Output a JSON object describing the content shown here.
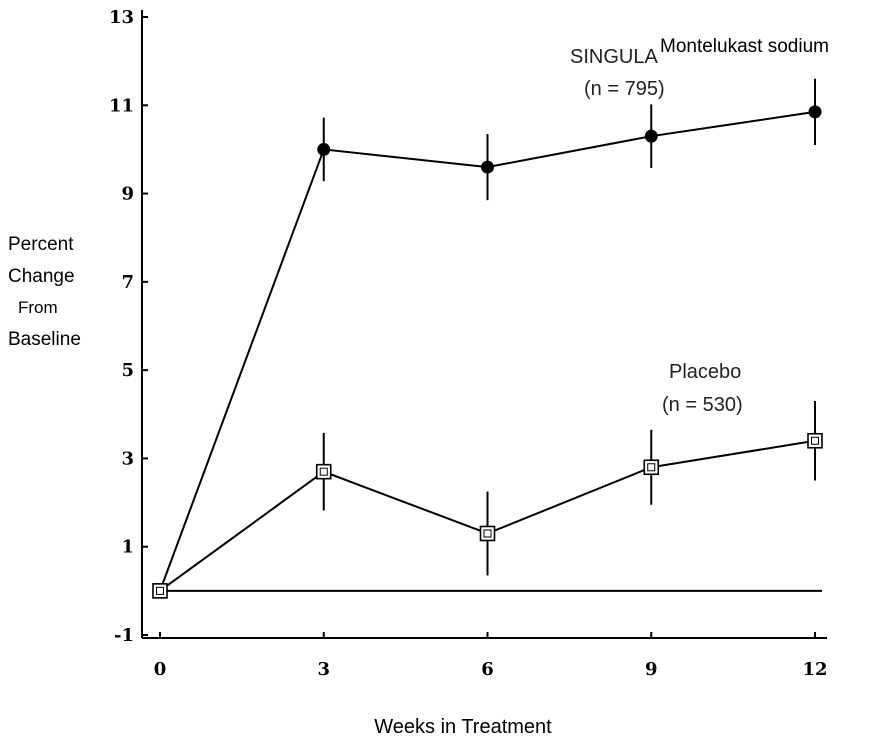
{
  "chart_data": {
    "type": "line",
    "xlabel": "Weeks in Treatment",
    "ylabel_lines": [
      "Percent",
      "Change",
      "From",
      "Baseline"
    ],
    "x": [
      0,
      3,
      6,
      9,
      12
    ],
    "xlim": [
      0,
      12
    ],
    "ylim": [
      -1,
      13
    ],
    "x_ticks": [
      0,
      3,
      6,
      9,
      12
    ],
    "y_ticks": [
      -1,
      1,
      3,
      5,
      7,
      9,
      11,
      13
    ],
    "grid": false,
    "reference_line_y": 0,
    "series": [
      {
        "key": "singulair",
        "label_lines": [
          "SINGULA",
          "(n = 795)"
        ],
        "overlay_label": "Montelukast sodium",
        "marker": "filled-circle",
        "color": "#000000",
        "values": [
          0,
          10.0,
          9.6,
          10.3,
          10.85
        ],
        "error": [
          0,
          0.72,
          0.75,
          0.72,
          0.75
        ]
      },
      {
        "key": "placebo",
        "label_lines": [
          "Placebo",
          "(n = 530)"
        ],
        "marker": "open-square",
        "color": "#000000",
        "values": [
          0,
          2.7,
          1.3,
          2.8,
          3.4
        ],
        "error": [
          0,
          0.88,
          0.95,
          0.85,
          0.9
        ]
      }
    ]
  }
}
